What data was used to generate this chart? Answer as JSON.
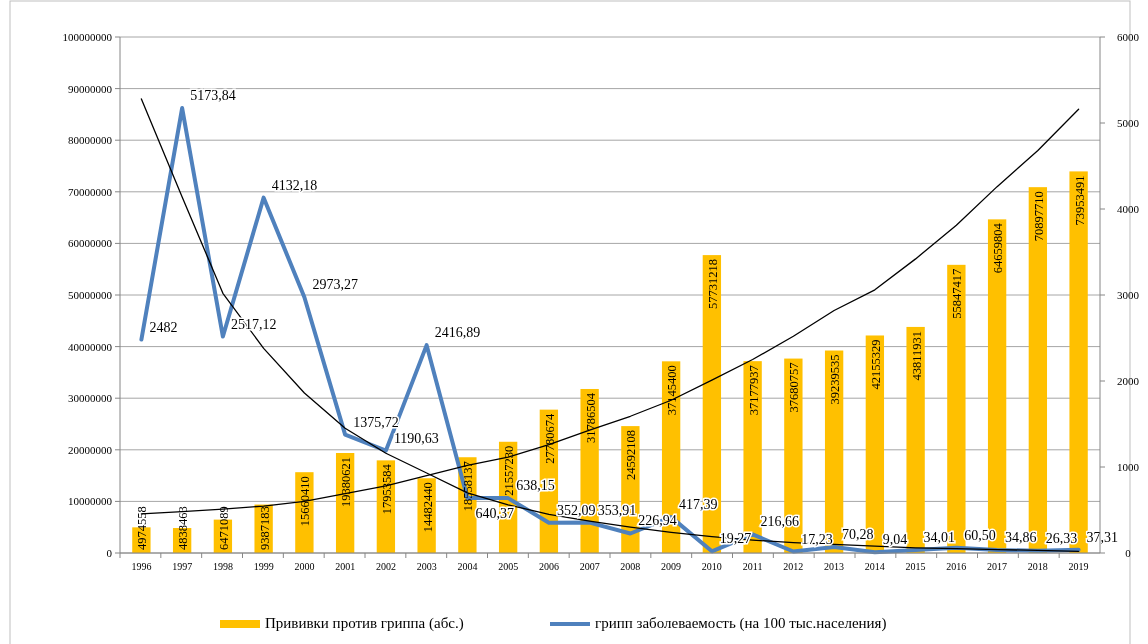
{
  "chart_data": {
    "type": "bar",
    "categories": [
      "1996",
      "1997",
      "1998",
      "1999",
      "2000",
      "2001",
      "2002",
      "2003",
      "2004",
      "2005",
      "2006",
      "2007",
      "2008",
      "2009",
      "2010",
      "2011",
      "2012",
      "2013",
      "2014",
      "2015",
      "2016",
      "2017",
      "2018",
      "2019"
    ],
    "series": [
      {
        "name": "Прививки  против гриппа (абс.)",
        "color": "#ffc000",
        "values": [
          4974558,
          4838463,
          6471089,
          9387183,
          15660410,
          19380621,
          17953584,
          14482440,
          18558137,
          21557230,
          27780674,
          31786504,
          24592108,
          37145400,
          57731218,
          37177937,
          37680757,
          39239535,
          42155329,
          43811931,
          55847417,
          64659804,
          70897710,
          73953491
        ],
        "value_labels": [
          "4974558",
          "4838463",
          "6471089",
          "9387183",
          "15660410",
          "19380621",
          "17953584",
          "14482440",
          "18558137",
          "21557230",
          "27780674",
          "31786504",
          "24592108",
          "37145400",
          "57731218",
          "37177937",
          "37680757",
          "39239535",
          "42155329",
          "43811931",
          "55847417",
          "64659804",
          "70897710",
          "73953491"
        ]
      },
      {
        "name": "грипп заболеваемость (на 100 тыс.населения)",
        "type": "line",
        "axis": "y2",
        "color": "#4f81bd",
        "values": [
          2482,
          5173.84,
          2517.12,
          4132.18,
          2973.27,
          1375.72,
          1190.63,
          2416.89,
          640.37,
          638.15,
          352.09,
          353.91,
          226.94,
          417.39,
          19.27,
          216.66,
          17.23,
          70.28,
          9.04,
          34.01,
          60.5,
          34.86,
          26.33,
          37.31
        ],
        "value_labels": [
          "2482",
          "5173,84",
          "2517,12",
          "4132,18",
          "2973,27",
          "1375,72",
          "1190,63",
          "2416,89",
          "640,37",
          "638,15",
          "352,09",
          "353,91",
          "226,94",
          "417,39",
          "19,27",
          "216,66",
          "17,23",
          "70,28",
          "9,04",
          "34,01",
          "60,50",
          "34,86",
          "26,33",
          "37,31"
        ]
      },
      {
        "type": "line",
        "color": "#000000",
        "values": [
          7600000,
          8000000,
          8500000,
          9100000,
          10000000,
          11500000,
          13000000,
          15000000,
          17000000,
          18600000,
          21000000,
          23800000,
          26500000,
          29600000,
          33500000,
          37500000,
          42000000,
          47000000,
          51000000,
          57000000,
          63500000,
          71000000,
          78000000,
          86000000
        ]
      },
      {
        "type": "line",
        "axis": "y2",
        "color": "#000000",
        "values": [
          5280,
          4140,
          3020,
          2380,
          1860,
          1450,
          1160,
          930,
          700,
          560,
          450,
          370,
          300,
          240,
          190,
          150,
          120,
          100,
          80,
          60,
          50,
          40,
          30,
          20
        ]
      }
    ],
    "ylim": [
      0,
      100000000
    ],
    "yticks": [
      0,
      10000000,
      20000000,
      30000000,
      40000000,
      50000000,
      60000000,
      70000000,
      80000000,
      90000000,
      100000000
    ],
    "y2lim": [
      0,
      6000
    ],
    "y2ticks": [
      0,
      1000,
      2000,
      3000,
      4000,
      5000,
      6000
    ],
    "grid": "y",
    "legend": "bottom",
    "marker": "none"
  }
}
